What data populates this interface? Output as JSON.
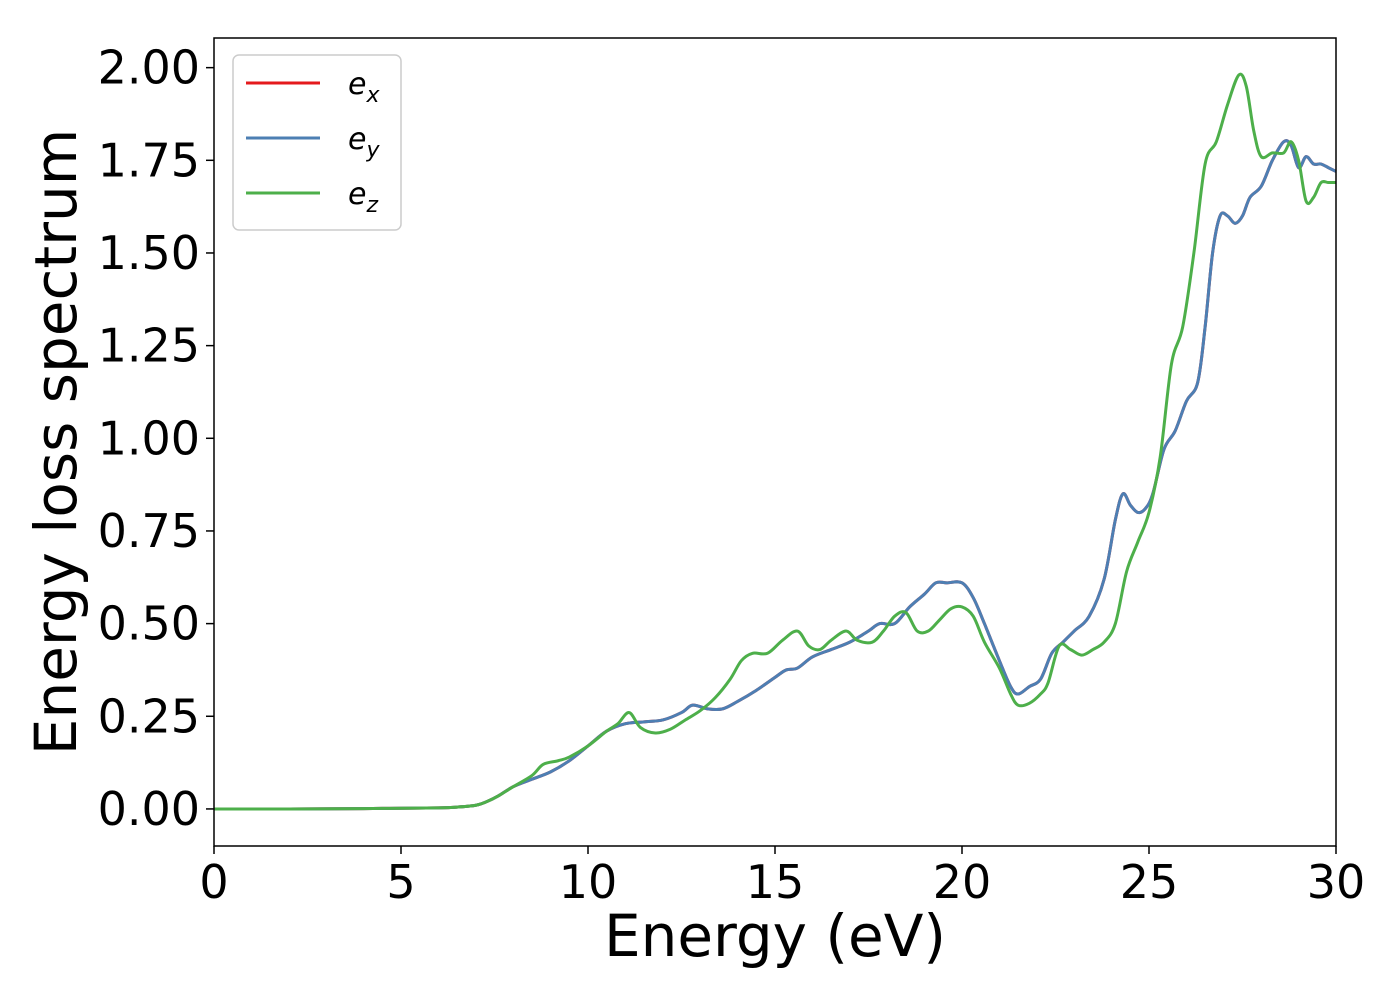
{
  "chart_data": {
    "type": "line",
    "title": "",
    "xlabel": "Energy (eV)",
    "ylabel": "Energy loss spectrum",
    "xlim": [
      0,
      30
    ],
    "ylim": [
      -0.1,
      2.08
    ],
    "xticks": [
      0,
      5,
      10,
      15,
      20,
      25,
      30
    ],
    "xtick_labels": [
      "0",
      "5",
      "10",
      "15",
      "20",
      "25",
      "30"
    ],
    "yticks": [
      0.0,
      0.25,
      0.5,
      0.75,
      1.0,
      1.25,
      1.5,
      1.75,
      2.0
    ],
    "ytick_labels": [
      "0.00",
      "0.25",
      "0.50",
      "0.75",
      "1.00",
      "1.25",
      "1.50",
      "1.75",
      "2.00"
    ],
    "grid": false,
    "legend_position": "top-left",
    "series": [
      {
        "name": "e_x",
        "legend_base": "e",
        "legend_sub": "x",
        "color": "#e41a1c",
        "x": [
          0,
          2,
          4,
          5,
          6,
          6.5,
          7,
          7.3,
          7.6,
          8,
          8.5,
          9,
          9.5,
          10,
          10.5,
          11,
          11.5,
          12,
          12.5,
          12.8,
          13.2,
          13.6,
          14,
          14.5,
          15,
          15.3,
          15.6,
          16,
          16.5,
          17,
          17.5,
          17.8,
          18.2,
          18.6,
          19,
          19.3,
          19.6,
          20,
          20.3,
          20.6,
          21,
          21.3,
          21.5,
          21.8,
          22.1,
          22.4,
          22.7,
          23,
          23.4,
          23.8,
          24.1,
          24.3,
          24.5,
          24.7,
          24.9,
          25.1,
          25.4,
          25.7,
          26,
          26.3,
          26.5,
          26.7,
          26.9,
          27.1,
          27.3,
          27.5,
          27.7,
          28,
          28.3,
          28.6,
          28.8,
          29,
          29.2,
          29.4,
          29.6,
          29.8,
          30
        ],
        "y": [
          0,
          0,
          0.001,
          0.002,
          0.003,
          0.005,
          0.01,
          0.02,
          0.035,
          0.06,
          0.08,
          0.1,
          0.13,
          0.17,
          0.21,
          0.23,
          0.235,
          0.24,
          0.26,
          0.28,
          0.27,
          0.27,
          0.29,
          0.32,
          0.355,
          0.375,
          0.38,
          0.41,
          0.43,
          0.45,
          0.48,
          0.5,
          0.5,
          0.545,
          0.58,
          0.61,
          0.61,
          0.61,
          0.57,
          0.5,
          0.4,
          0.33,
          0.31,
          0.33,
          0.35,
          0.42,
          0.45,
          0.48,
          0.52,
          0.62,
          0.78,
          0.85,
          0.82,
          0.8,
          0.81,
          0.85,
          0.97,
          1.02,
          1.1,
          1.15,
          1.3,
          1.5,
          1.6,
          1.6,
          1.58,
          1.6,
          1.65,
          1.68,
          1.75,
          1.8,
          1.79,
          1.73,
          1.76,
          1.74,
          1.74,
          1.73,
          1.72
        ]
      },
      {
        "name": "e_y",
        "legend_base": "e",
        "legend_sub": "y",
        "color": "#4d7fb3",
        "x": [
          0,
          2,
          4,
          5,
          6,
          6.5,
          7,
          7.3,
          7.6,
          8,
          8.5,
          9,
          9.5,
          10,
          10.5,
          11,
          11.5,
          12,
          12.5,
          12.8,
          13.2,
          13.6,
          14,
          14.5,
          15,
          15.3,
          15.6,
          16,
          16.5,
          17,
          17.5,
          17.8,
          18.2,
          18.6,
          19,
          19.3,
          19.6,
          20,
          20.3,
          20.6,
          21,
          21.3,
          21.5,
          21.8,
          22.1,
          22.4,
          22.7,
          23,
          23.4,
          23.8,
          24.1,
          24.3,
          24.5,
          24.7,
          24.9,
          25.1,
          25.4,
          25.7,
          26,
          26.3,
          26.5,
          26.7,
          26.9,
          27.1,
          27.3,
          27.5,
          27.7,
          28,
          28.3,
          28.6,
          28.8,
          29,
          29.2,
          29.4,
          29.6,
          29.8,
          30
        ],
        "y": [
          0,
          0,
          0.001,
          0.002,
          0.003,
          0.005,
          0.01,
          0.02,
          0.035,
          0.06,
          0.08,
          0.1,
          0.13,
          0.17,
          0.21,
          0.23,
          0.235,
          0.24,
          0.26,
          0.28,
          0.27,
          0.27,
          0.29,
          0.32,
          0.355,
          0.375,
          0.38,
          0.41,
          0.43,
          0.45,
          0.48,
          0.5,
          0.5,
          0.545,
          0.58,
          0.61,
          0.61,
          0.61,
          0.57,
          0.5,
          0.4,
          0.33,
          0.31,
          0.33,
          0.35,
          0.42,
          0.45,
          0.48,
          0.52,
          0.62,
          0.78,
          0.85,
          0.82,
          0.8,
          0.81,
          0.85,
          0.97,
          1.02,
          1.1,
          1.15,
          1.3,
          1.5,
          1.6,
          1.6,
          1.58,
          1.6,
          1.65,
          1.68,
          1.75,
          1.8,
          1.79,
          1.73,
          1.76,
          1.74,
          1.74,
          1.73,
          1.72
        ]
      },
      {
        "name": "e_z",
        "legend_base": "e",
        "legend_sub": "z",
        "color": "#4daf4a",
        "x": [
          0,
          2,
          4,
          5,
          6,
          6.5,
          7,
          7.3,
          7.6,
          8,
          8.5,
          8.8,
          9.2,
          9.5,
          10,
          10.5,
          10.8,
          11.1,
          11.4,
          11.8,
          12.2,
          12.6,
          13,
          13.4,
          13.8,
          14.1,
          14.4,
          14.8,
          15.2,
          15.6,
          15.9,
          16.2,
          16.5,
          16.9,
          17.2,
          17.6,
          17.9,
          18.2,
          18.5,
          18.8,
          19.1,
          19.4,
          19.7,
          20,
          20.3,
          20.6,
          21,
          21.3,
          21.5,
          21.8,
          22.1,
          22.3,
          22.6,
          22.9,
          23.2,
          23.5,
          23.8,
          24.1,
          24.4,
          24.7,
          25,
          25.3,
          25.6,
          25.9,
          26.2,
          26.5,
          26.8,
          27.1,
          27.4,
          27.6,
          27.8,
          28,
          28.3,
          28.6,
          28.8,
          29,
          29.2,
          29.4,
          29.6,
          29.8,
          30
        ],
        "y": [
          0,
          0,
          0.001,
          0.002,
          0.003,
          0.005,
          0.01,
          0.02,
          0.035,
          0.06,
          0.09,
          0.12,
          0.13,
          0.14,
          0.17,
          0.21,
          0.23,
          0.26,
          0.22,
          0.205,
          0.215,
          0.24,
          0.265,
          0.3,
          0.35,
          0.4,
          0.42,
          0.42,
          0.455,
          0.48,
          0.44,
          0.43,
          0.455,
          0.48,
          0.455,
          0.45,
          0.48,
          0.52,
          0.53,
          0.48,
          0.48,
          0.51,
          0.54,
          0.545,
          0.52,
          0.45,
          0.38,
          0.31,
          0.28,
          0.285,
          0.31,
          0.34,
          0.44,
          0.43,
          0.415,
          0.43,
          0.45,
          0.5,
          0.64,
          0.72,
          0.8,
          0.95,
          1.2,
          1.3,
          1.5,
          1.74,
          1.8,
          1.9,
          1.98,
          1.95,
          1.83,
          1.76,
          1.77,
          1.77,
          1.8,
          1.75,
          1.64,
          1.65,
          1.69,
          1.69,
          1.69
        ]
      }
    ]
  }
}
